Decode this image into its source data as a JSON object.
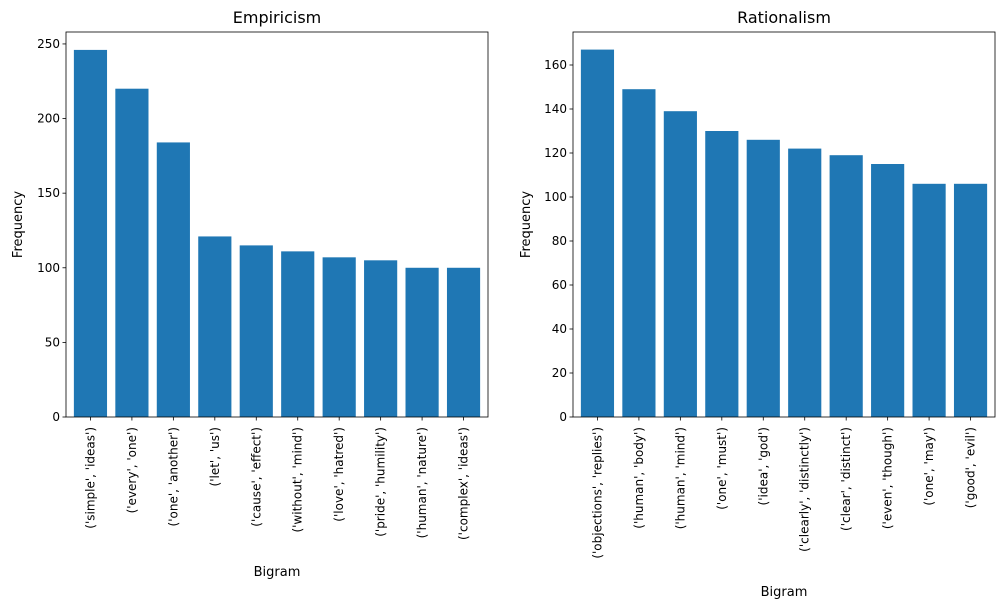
{
  "chart_data": [
    {
      "type": "bar",
      "title": "Empiricism",
      "xlabel": "Bigram",
      "ylabel": "Frequency",
      "ylim": [
        0,
        258
      ],
      "yticks": [
        0,
        50,
        100,
        150,
        200,
        250
      ],
      "categories": [
        "('simple', 'ideas')",
        "('every', 'one')",
        "('one', 'another')",
        "('let', 'us')",
        "('cause', 'effect')",
        "('without', 'mind')",
        "('love', 'hatred')",
        "('pride', 'humility')",
        "('human', 'nature')",
        "('complex', 'ideas')"
      ],
      "values": [
        246,
        220,
        184,
        121,
        115,
        111,
        107,
        105,
        100,
        100
      ],
      "color": "#1f77b4",
      "grid": false
    },
    {
      "type": "bar",
      "title": "Rationalism",
      "xlabel": "Bigram",
      "ylabel": "Frequency",
      "ylim": [
        0,
        175
      ],
      "yticks": [
        0,
        20,
        40,
        60,
        80,
        100,
        120,
        140,
        160
      ],
      "categories": [
        "('objections', 'replies')",
        "('human', 'body')",
        "('human', 'mind')",
        "('one', 'must')",
        "('idea', 'god')",
        "('clearly', 'distinctly')",
        "('clear', 'distinct')",
        "('even', 'though')",
        "('one', 'may')",
        "('good', 'evil')"
      ],
      "values": [
        167,
        149,
        139,
        130,
        126,
        122,
        119,
        115,
        106,
        106
      ],
      "color": "#1f77b4",
      "grid": false
    }
  ]
}
